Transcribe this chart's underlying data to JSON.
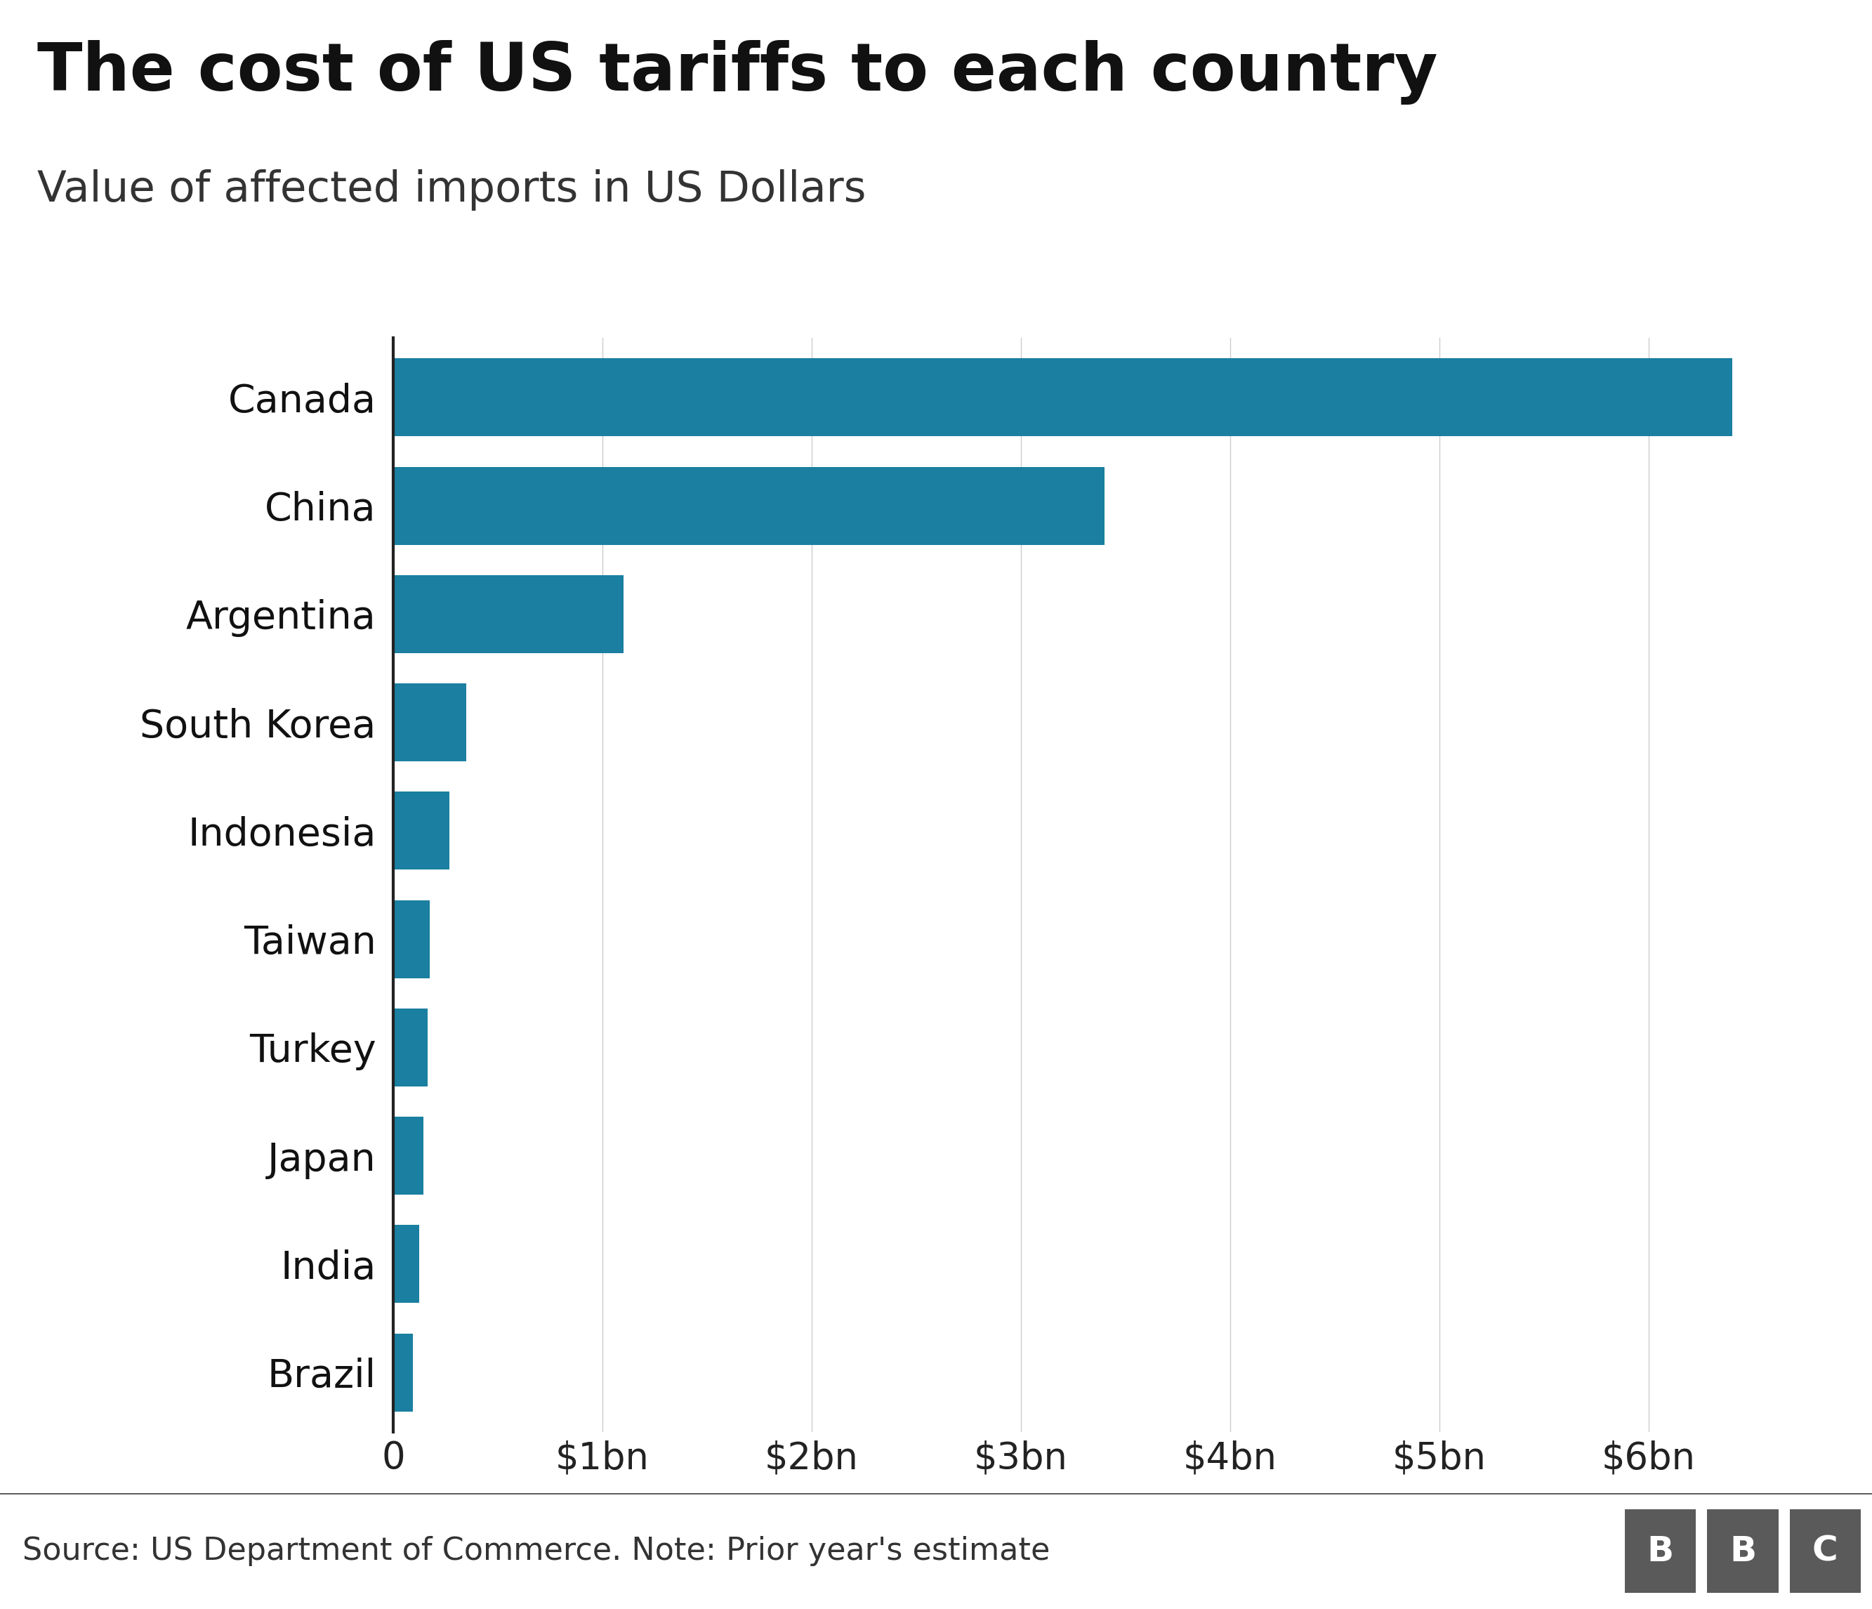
{
  "title": "The cost of US tariffs to each country",
  "subtitle": "Value of affected imports in US Dollars",
  "countries": [
    "Canada",
    "China",
    "Argentina",
    "South Korea",
    "Indonesia",
    "Taiwan",
    "Turkey",
    "Japan",
    "India",
    "Brazil"
  ],
  "values": [
    6.4,
    3.4,
    1.1,
    0.35,
    0.27,
    0.175,
    0.165,
    0.145,
    0.125,
    0.095
  ],
  "bar_color": "#1a7fa0",
  "background_color": "#ffffff",
  "xlim": [
    0,
    6.8
  ],
  "xticks": [
    0,
    1,
    2,
    3,
    4,
    5,
    6
  ],
  "xtick_labels": [
    "0",
    "$1bn",
    "$2bn",
    "$3bn",
    "$4bn",
    "$5bn",
    "$6bn"
  ],
  "source_text": "Source: US Department of Commerce. Note: Prior year's estimate",
  "footer_bg": "#e8e8e8",
  "title_fontsize": 68,
  "subtitle_fontsize": 44,
  "label_fontsize": 40,
  "tick_fontsize": 38,
  "source_fontsize": 32,
  "bar_height": 0.72
}
